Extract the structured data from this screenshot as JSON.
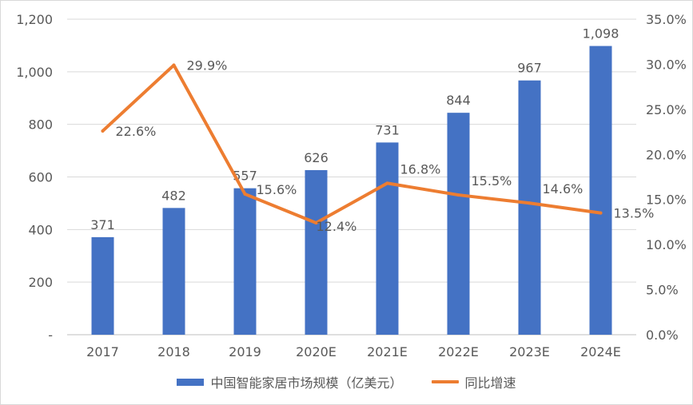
{
  "chart_data": {
    "type": "bar",
    "categories": [
      "2017",
      "2018",
      "2019",
      "2020E",
      "2021E",
      "2022E",
      "2023E",
      "2024E"
    ],
    "series": [
      {
        "name": "中国智能家居市场规模（亿美元）",
        "type": "bar",
        "axis": "left",
        "color": "#4472c4",
        "values": [
          371,
          482,
          557,
          626,
          731,
          844,
          967,
          1098
        ],
        "labels": [
          "371",
          "482",
          "557",
          "626",
          "731",
          "844",
          "967",
          "1,098"
        ]
      },
      {
        "name": "同比增速",
        "type": "line",
        "axis": "right",
        "color": "#ed7d31",
        "values": [
          22.6,
          29.9,
          15.6,
          12.4,
          16.8,
          15.5,
          14.6,
          13.5
        ],
        "labels": [
          "22.6%",
          "29.9%",
          "15.6%",
          "12.4%",
          "16.8%",
          "15.5%",
          "14.6%",
          "13.5%"
        ]
      }
    ],
    "ylim_left": [
      0,
      1200
    ],
    "ylim_right": [
      0,
      35
    ],
    "y_ticks_left": [
      "-",
      "200",
      "400",
      "600",
      "800",
      "1,000",
      "1,200"
    ],
    "y_ticks_right": [
      "0.0%",
      "5.0%",
      "10.0%",
      "15.0%",
      "20.0%",
      "25.0%",
      "30.0%",
      "35.0%"
    ],
    "grid": true,
    "legend_position": "bottom"
  }
}
